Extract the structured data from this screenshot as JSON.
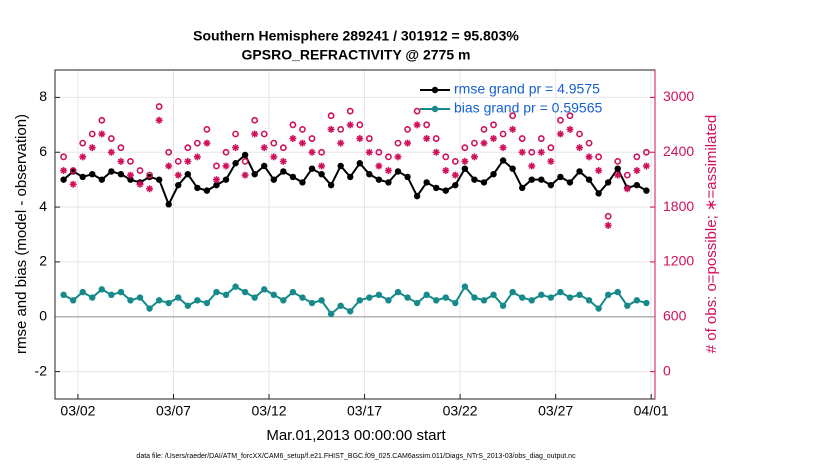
{
  "chart_data": {
    "type": "line",
    "title": "Southern Hemisphere 289241 / 301912 = 95.803%",
    "subtitle": "GPSRO_REFRACTIVITY @ 2775 m",
    "xlabel": "Mar.01,2013 00:00:00 start",
    "ylabel": "rmse and bias (model - observation)",
    "y2label": "# of obs: o=possible; ∗=assimilated",
    "footer": "data file: /Users/raeder/DAI/ATM_forcXX/CAM6_setup/f.e21.FHIST_BGC.f09_025.CAM6assim.011/Diags_NTrS_2013-03/obs_diag_output.nc",
    "x": [
      0.25,
      0.75,
      1.25,
      1.75,
      2.25,
      2.75,
      3.25,
      3.75,
      4.25,
      4.75,
      5.25,
      5.75,
      6.25,
      6.75,
      7.25,
      7.75,
      8.25,
      8.75,
      9.25,
      9.75,
      10.25,
      10.75,
      11.25,
      11.75,
      12.25,
      12.75,
      13.25,
      13.75,
      14.25,
      14.75,
      15.25,
      15.75,
      16.25,
      16.75,
      17.25,
      17.75,
      18.25,
      18.75,
      19.25,
      19.75,
      20.25,
      20.75,
      21.25,
      21.75,
      22.25,
      22.75,
      23.25,
      23.75,
      24.25,
      24.75,
      25.25,
      25.75,
      26.25,
      26.75,
      27.25,
      27.75,
      28.25,
      28.75,
      29.25,
      29.75,
      30.25,
      30.75
    ],
    "xlim": [
      -0.2,
      31.2
    ],
    "xticks": [
      {
        "value": 1,
        "label": "03/02"
      },
      {
        "value": 6,
        "label": "03/07"
      },
      {
        "value": 11,
        "label": "03/12"
      },
      {
        "value": 16,
        "label": "03/17"
      },
      {
        "value": 21,
        "label": "03/22"
      },
      {
        "value": 26,
        "label": "03/27"
      },
      {
        "value": 31,
        "label": "04/01"
      }
    ],
    "ylim": [
      -3,
      9
    ],
    "yticks": [
      -2,
      0,
      2,
      4,
      6,
      8
    ],
    "y2lim": [
      -300,
      3300
    ],
    "y2ticks": [
      0,
      600,
      1200,
      1800,
      2400,
      3000
    ],
    "grid": true,
    "legend": "upper right",
    "series": [
      {
        "name": "rmse grand pr = 4.9575",
        "color": "#000000",
        "marker": "dot",
        "values": [
          5.0,
          5.3,
          5.1,
          5.2,
          5.0,
          5.3,
          5.2,
          5.0,
          4.9,
          5.1,
          5.0,
          4.1,
          4.8,
          5.2,
          4.7,
          4.6,
          4.8,
          5.0,
          5.6,
          5.9,
          5.2,
          5.5,
          5.0,
          5.3,
          5.1,
          4.9,
          5.4,
          5.2,
          4.8,
          5.5,
          5.1,
          5.6,
          5.2,
          5.0,
          4.9,
          5.3,
          5.1,
          4.4,
          4.9,
          4.7,
          4.6,
          4.8,
          5.4,
          5.0,
          4.9,
          5.2,
          5.7,
          5.4,
          4.7,
          5.0,
          5.0,
          4.8,
          5.1,
          4.9,
          5.3,
          5.0,
          4.5,
          4.9,
          5.4,
          4.7,
          4.8,
          4.6
        ]
      },
      {
        "name": "bias grand pr = 0.59565",
        "color": "#168a8a",
        "marker": "dot",
        "values": [
          0.8,
          0.6,
          0.9,
          0.7,
          1.0,
          0.8,
          0.9,
          0.6,
          0.7,
          0.3,
          0.6,
          0.5,
          0.7,
          0.4,
          0.6,
          0.5,
          0.9,
          0.8,
          1.1,
          0.9,
          0.7,
          1.0,
          0.8,
          0.6,
          0.9,
          0.7,
          0.5,
          0.6,
          0.1,
          0.4,
          0.2,
          0.6,
          0.7,
          0.8,
          0.6,
          0.9,
          0.7,
          0.5,
          0.8,
          0.6,
          0.7,
          0.5,
          1.1,
          0.7,
          0.6,
          0.8,
          0.4,
          0.9,
          0.7,
          0.6,
          0.8,
          0.7,
          0.9,
          0.7,
          0.8,
          0.6,
          0.3,
          0.8,
          0.9,
          0.4,
          0.6,
          0.5
        ]
      },
      {
        "color": "#d0105c",
        "marker": "o",
        "axis": "y2",
        "values": [
          2350,
          2200,
          2500,
          2600,
          2750,
          2550,
          2450,
          2300,
          2200,
          2150,
          2900,
          2400,
          2300,
          2450,
          2500,
          2650,
          2250,
          2400,
          2600,
          2300,
          2750,
          2600,
          2500,
          2450,
          2700,
          2650,
          2550,
          2400,
          2800,
          2650,
          2850,
          2700,
          2550,
          2400,
          2350,
          2500,
          2650,
          2850,
          2700,
          2550,
          2350,
          2300,
          2450,
          2500,
          2650,
          2700,
          2600,
          2800,
          2550,
          2400,
          2550,
          2450,
          2750,
          2800,
          2600,
          2500,
          2350,
          1700,
          2300,
          2150,
          2350,
          2400
        ]
      },
      {
        "color": "#d0105c",
        "marker": "star",
        "axis": "y2",
        "values": [
          2200,
          2050,
          2350,
          2450,
          2600,
          2400,
          2300,
          2150,
          2050,
          2000,
          2750,
          2250,
          2150,
          2300,
          2350,
          2500,
          2100,
          2250,
          2450,
          2150,
          2600,
          2450,
          2350,
          2300,
          2550,
          2500,
          2400,
          2250,
          2650,
          2500,
          2700,
          2550,
          2400,
          2250,
          2200,
          2350,
          2500,
          2700,
          2550,
          2400,
          2200,
          2150,
          2300,
          2350,
          2500,
          2550,
          2450,
          2650,
          2400,
          2250,
          2400,
          2300,
          2600,
          2650,
          2450,
          2350,
          2200,
          1600,
          2150,
          2000,
          2200,
          2250
        ]
      }
    ]
  }
}
